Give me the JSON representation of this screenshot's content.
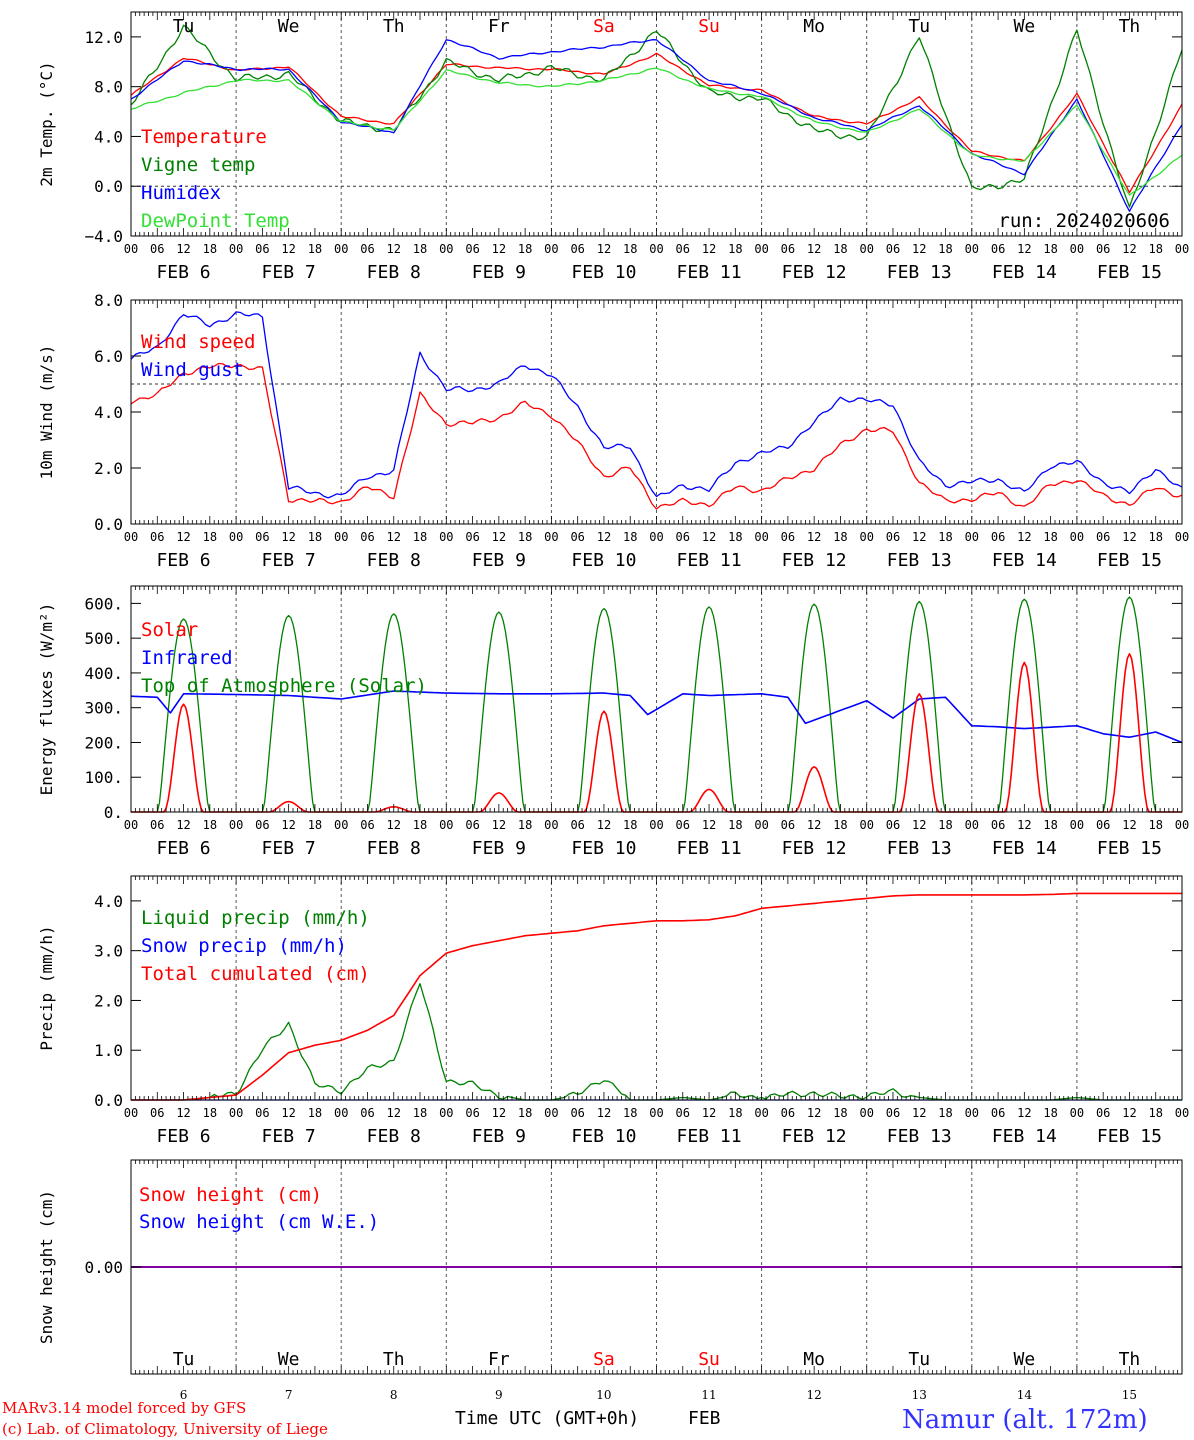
{
  "colors": {
    "red": "#ff0000",
    "green": "#008000",
    "blue": "#0000ff",
    "lightgreen": "#33e033",
    "purple": "#8000a0",
    "location": "#3333ff"
  },
  "days_top": [
    {
      "label": "Tu",
      "color": "#000000"
    },
    {
      "label": "We",
      "color": "#000000"
    },
    {
      "label": "Th",
      "color": "#000000"
    },
    {
      "label": "Fr",
      "color": "#000000"
    },
    {
      "label": "Sa",
      "color": "#ff0000"
    },
    {
      "label": "Su",
      "color": "#ff0000"
    },
    {
      "label": "Mo",
      "color": "#000000"
    },
    {
      "label": "Tu",
      "color": "#000000"
    },
    {
      "label": "We",
      "color": "#000000"
    },
    {
      "label": "Th",
      "color": "#000000"
    }
  ],
  "hour_labels": [
    "00",
    "06",
    "12",
    "18"
  ],
  "hour_end_label": "00",
  "date_labels": [
    "FEB 6",
    "FEB 7",
    "FEB 8",
    "FEB 9",
    "FEB 10",
    "FEB 11",
    "FEB 12",
    "FEB 13",
    "FEB 14",
    "FEB 15"
  ],
  "bottom_day_numbers": [
    "6",
    "7",
    "8",
    "9",
    "10",
    "11",
    "12",
    "13",
    "14",
    "15"
  ],
  "footer": {
    "model": "MARv3.14 model forced by GFS",
    "lab": "(c) Lab. of Climatology, University of Liege",
    "xlabel": "Time UTC (GMT+0h)",
    "month": "FEB",
    "location": "Namur (alt. 172m)"
  },
  "chart_data": [
    {
      "type": "line",
      "ylabel": "2m Temp. (°C)",
      "ylim": [
        -4,
        14
      ],
      "yticks": [
        "12.0",
        "8.0",
        "4.0",
        "0.0",
        "−4.0"
      ],
      "ytick_values": [
        12,
        8,
        4,
        0,
        -4
      ],
      "ref_line": 0,
      "annotation": "run: 2024020606",
      "legend": [
        "Temperature",
        "Vigne temp",
        "Humidex",
        "DewPoint Temp"
      ],
      "x_hours": [
        0,
        12,
        24,
        36,
        48,
        60,
        72,
        84,
        96,
        108,
        120,
        132,
        144,
        156,
        168,
        180,
        192,
        204,
        216,
        228,
        240
      ],
      "series": [
        {
          "name": "Temperature",
          "color": "#ff0000",
          "values": [
            7.3,
            10.3,
            9.3,
            9.6,
            5.6,
            5.0,
            9.8,
            9.5,
            9.4,
            9.0,
            10.6,
            8.1,
            7.7,
            5.6,
            5.0,
            7.1,
            2.8,
            2.0,
            7.4,
            -0.5,
            6.5
          ]
        },
        {
          "name": "Vigne temp",
          "color": "#008000",
          "values": [
            6.5,
            12.8,
            8.6,
            9.0,
            5.2,
            4.5,
            10.0,
            8.5,
            9.5,
            8.5,
            12.5,
            7.5,
            7.0,
            4.5,
            3.8,
            12.0,
            -0.3,
            0.5,
            12.5,
            -2.0,
            11.0
          ]
        },
        {
          "name": "Humidex",
          "color": "#0000ff",
          "values": [
            7.0,
            10.1,
            9.4,
            9.4,
            5.2,
            4.3,
            11.8,
            10.3,
            10.8,
            11.2,
            11.8,
            8.5,
            7.5,
            5.5,
            4.5,
            6.5,
            2.6,
            1.0,
            7.0,
            -2.0,
            5.0
          ]
        },
        {
          "name": "DewPoint Temp",
          "color": "#33e033",
          "values": [
            6.2,
            7.5,
            8.5,
            8.5,
            5.2,
            4.5,
            9.3,
            8.3,
            8.0,
            8.5,
            9.5,
            7.8,
            7.2,
            5.2,
            4.3,
            6.2,
            2.5,
            2.0,
            6.5,
            -0.8,
            2.5
          ]
        }
      ]
    },
    {
      "type": "line",
      "ylabel": "10m Wind (m/s)",
      "ylim": [
        0,
        8
      ],
      "yticks": [
        "8.0",
        "6.0",
        "4.0",
        "2.0",
        "0.0"
      ],
      "ytick_values": [
        8,
        6,
        4,
        2,
        0
      ],
      "ref_line": 5,
      "legend": [
        "Wind speed",
        "Wind gust"
      ],
      "x_hours": [
        0,
        6,
        12,
        18,
        24,
        30,
        36,
        42,
        48,
        54,
        60,
        66,
        72,
        78,
        84,
        90,
        96,
        102,
        108,
        114,
        120,
        126,
        132,
        138,
        144,
        150,
        156,
        162,
        168,
        174,
        180,
        186,
        192,
        198,
        204,
        210,
        216,
        222,
        228,
        234,
        240
      ],
      "series": [
        {
          "name": "Wind speed",
          "color": "#ff0000",
          "values": [
            4.4,
            4.6,
            5.4,
            5.6,
            5.7,
            5.5,
            0.9,
            0.8,
            0.8,
            1.3,
            1.0,
            4.6,
            3.6,
            3.6,
            3.8,
            4.3,
            3.9,
            2.9,
            1.7,
            2.0,
            0.6,
            0.8,
            0.7,
            1.3,
            1.2,
            1.6,
            2.0,
            2.8,
            3.4,
            3.3,
            1.5,
            0.8,
            0.9,
            1.1,
            0.6,
            1.4,
            1.6,
            1.0,
            0.7,
            1.3,
            1.0
          ]
        },
        {
          "name": "Wind gust",
          "color": "#0000ff",
          "values": [
            5.9,
            6.3,
            7.5,
            7.1,
            7.5,
            7.4,
            1.3,
            1.1,
            1.0,
            1.7,
            1.9,
            6.1,
            4.8,
            4.8,
            5.0,
            5.7,
            5.3,
            4.2,
            2.7,
            2.8,
            0.9,
            1.4,
            1.2,
            2.2,
            2.5,
            2.8,
            3.6,
            4.5,
            4.4,
            4.3,
            2.2,
            1.4,
            1.5,
            1.6,
            1.1,
            2.1,
            2.2,
            1.5,
            1.1,
            2.0,
            1.2
          ]
        }
      ]
    },
    {
      "type": "line",
      "ylabel": "Energy fluxes (W/m²)",
      "ylim": [
        0,
        650
      ],
      "yticks": [
        "600.",
        "500.",
        "400.",
        "300.",
        "200.",
        "100.",
        "0."
      ],
      "ytick_values": [
        600,
        500,
        400,
        300,
        200,
        100,
        0
      ],
      "legend": [
        "Solar",
        "Infrared",
        "Top of Atmosphere (Solar)"
      ],
      "toa_peaks": [
        555,
        565,
        570,
        575,
        585,
        590,
        598,
        605,
        612,
        618
      ],
      "solar_peaks": [
        310,
        30,
        15,
        55,
        290,
        65,
        130,
        340,
        430,
        455
      ],
      "infrared_hours": [
        0,
        6,
        9,
        12,
        24,
        36,
        48,
        60,
        72,
        84,
        96,
        108,
        114,
        118,
        126,
        132,
        144,
        150,
        154,
        168,
        174,
        180,
        186,
        192,
        198,
        204,
        216,
        222,
        228,
        234,
        240
      ],
      "infrared_values": [
        333,
        330,
        285,
        340,
        338,
        335,
        325,
        348,
        342,
        340,
        340,
        342,
        335,
        280,
        340,
        335,
        340,
        330,
        255,
        320,
        270,
        325,
        330,
        248,
        245,
        240,
        248,
        225,
        215,
        230,
        200
      ],
      "series": [
        {
          "name": "Solar",
          "color": "#ff0000"
        },
        {
          "name": "Infrared",
          "color": "#0000ff"
        },
        {
          "name": "Top of Atmosphere (Solar)",
          "color": "#008000"
        }
      ]
    },
    {
      "type": "line",
      "ylabel": "Precip (mm/h)",
      "ylim": [
        0,
        4.5
      ],
      "yticks": [
        "4.0",
        "3.0",
        "2.0",
        "1.0",
        "0.0"
      ],
      "ytick_values": [
        4,
        3,
        2,
        1,
        0
      ],
      "legend": [
        "Liquid precip (mm/h)",
        "Snow precip (mm/h)",
        "Total cumulated (cm)"
      ],
      "x_hours": [
        0,
        6,
        12,
        18,
        24,
        30,
        36,
        42,
        48,
        54,
        60,
        66,
        72,
        78,
        84,
        90,
        96,
        102,
        108,
        114,
        120,
        126,
        132,
        138,
        144,
        150,
        156,
        162,
        168,
        174,
        180,
        186,
        192,
        198,
        204,
        210,
        216,
        222,
        228,
        234,
        240
      ],
      "series": [
        {
          "name": "Liquid precip (mm/h)",
          "color": "#008000",
          "values": [
            0,
            0,
            0,
            0.05,
            0.15,
            1.0,
            1.55,
            0.3,
            0.2,
            0.6,
            0.8,
            2.35,
            0.4,
            0.3,
            0.1,
            0,
            0,
            0.1,
            0.45,
            0,
            0,
            0.05,
            0,
            0.1,
            0.05,
            0.1,
            0.15,
            0.05,
            0.1,
            0.15,
            0.05,
            0,
            0,
            0,
            0,
            0,
            0.05,
            0,
            0,
            0,
            0
          ]
        },
        {
          "name": "Snow precip (mm/h)",
          "color": "#0000ff",
          "values": [
            0,
            0,
            0,
            0,
            0,
            0,
            0,
            0,
            0,
            0,
            0,
            0,
            0,
            0,
            0,
            0,
            0,
            0,
            0,
            0,
            0,
            0,
            0,
            0,
            0,
            0,
            0,
            0,
            0,
            0,
            0,
            0,
            0,
            0,
            0,
            0,
            0,
            0,
            0,
            0,
            0
          ]
        },
        {
          "name": "Total cumulated (cm)",
          "color": "#ff0000",
          "values": [
            0,
            0,
            0,
            0.05,
            0.1,
            0.5,
            0.95,
            1.1,
            1.2,
            1.4,
            1.7,
            2.5,
            2.95,
            3.1,
            3.2,
            3.3,
            3.35,
            3.4,
            3.5,
            3.55,
            3.6,
            3.6,
            3.62,
            3.7,
            3.85,
            3.9,
            3.95,
            4.0,
            4.05,
            4.1,
            4.12,
            4.12,
            4.12,
            4.12,
            4.12,
            4.13,
            4.15,
            4.15,
            4.15,
            4.15,
            4.15
          ]
        }
      ]
    },
    {
      "type": "line",
      "ylabel": "Snow height (cm)",
      "ylim": [
        -1,
        1
      ],
      "yticks": [
        "0.00"
      ],
      "ytick_values": [
        0
      ],
      "legend": [
        "Snow height (cm)",
        "Snow height (cm W.E.)"
      ],
      "series": [
        {
          "name": "Snow height (cm)",
          "color": "#ff0000",
          "values": [
            0,
            0
          ]
        },
        {
          "name": "Snow height (cm W.E.)",
          "color": "#0000ff",
          "values": [
            0,
            0
          ]
        }
      ]
    }
  ]
}
